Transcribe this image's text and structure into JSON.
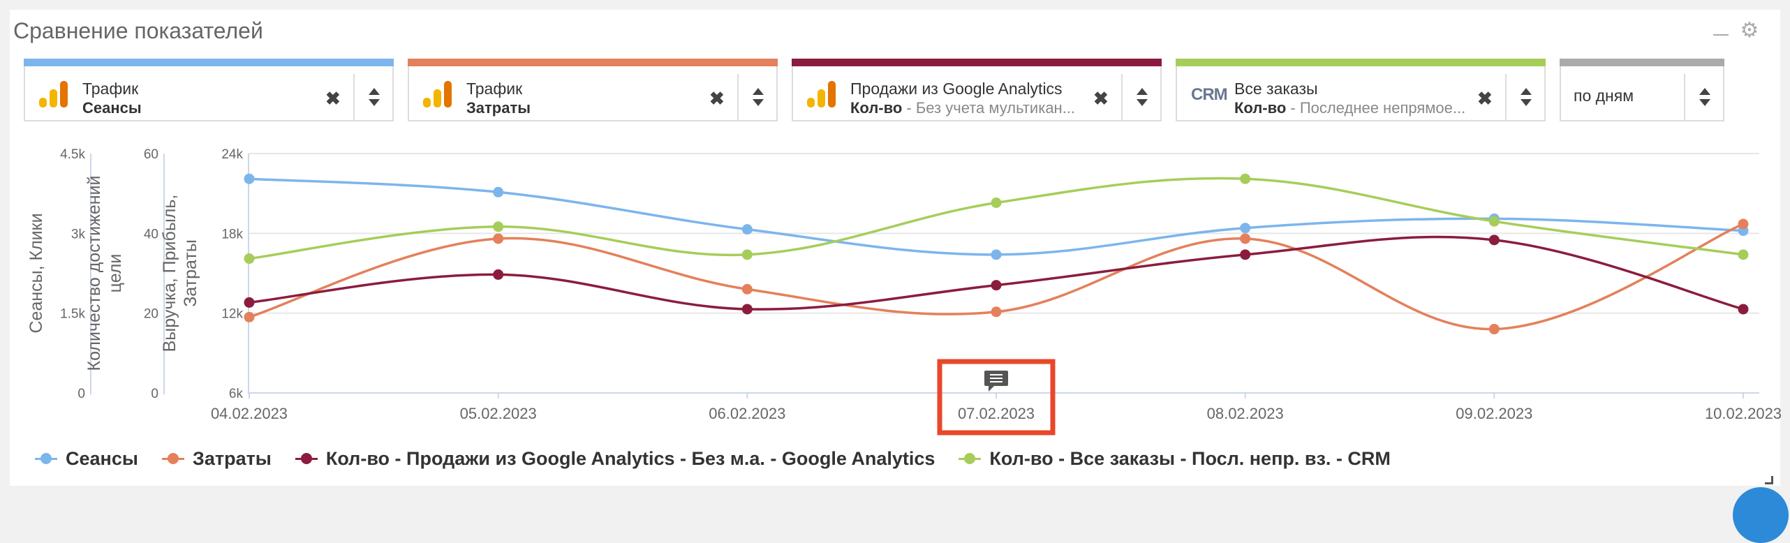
{
  "widget": {
    "title": "Сравнение показателей"
  },
  "selectors": [
    {
      "line1": "Трафик",
      "metric": "Сеансы",
      "detail": "",
      "color": "#7cb5ec",
      "icon": "google-analytics-icon"
    },
    {
      "line1": "Трафик",
      "metric": "Затраты",
      "detail": "",
      "color": "#e4805b",
      "icon": "google-analytics-icon"
    },
    {
      "line1": "Продажи из Google Analytics",
      "metric": "Кол-во",
      "detail": " - Без учета мультикан...",
      "color": "#8c1c3d",
      "icon": "google-analytics-icon"
    },
    {
      "line1": "Все заказы",
      "metric": "Кол-во",
      "detail": " - Последнее непрямое...",
      "color": "#a6cd5a",
      "icon": "crm-icon",
      "icon_text": "CRM"
    }
  ],
  "period": {
    "label": "по дням",
    "color": "#aaaaaa"
  },
  "chart_data": {
    "type": "line",
    "x": [
      "04.02.2023",
      "05.02.2023",
      "06.02.2023",
      "07.02.2023",
      "08.02.2023",
      "09.02.2023",
      "10.02.2023"
    ],
    "axes": [
      {
        "id": "sessions",
        "label": "Сеансы, Клики",
        "ticks": [
          "0",
          "1.5k",
          "3k",
          "4.5k"
        ],
        "range": [
          0,
          4500
        ]
      },
      {
        "id": "goals",
        "label": "Количество достижений цели",
        "label_lines": [
          "Количество достижений",
          "цели"
        ],
        "ticks": [
          "0",
          "20",
          "40",
          "60"
        ],
        "range": [
          0,
          60
        ]
      },
      {
        "id": "revenue",
        "label": "Выручка, Прибыль, Затраты",
        "label_lines": [
          "Выручка, Прибыль,",
          "Затраты"
        ],
        "ticks": [
          "6k",
          "12k",
          "18k",
          "24k"
        ],
        "range": [
          6000,
          24000
        ]
      }
    ],
    "series": [
      {
        "name": "Сеансы",
        "color": "#7cb5ec",
        "values": [
          22100,
          21100,
          18300,
          16400,
          18400,
          19100,
          18200
        ]
      },
      {
        "name": "Затраты",
        "color": "#e4805b",
        "values": [
          11700,
          17600,
          13800,
          12100,
          17600,
          10800,
          18700
        ]
      },
      {
        "name": "Кол-во - Продажи из Google Analytics - Без м.а. - Google Analytics",
        "color": "#8c1c3d",
        "values": [
          12800,
          14900,
          12300,
          14100,
          16400,
          17500,
          12300
        ]
      },
      {
        "name": "Кол-во - Все заказы - Посл. непр. вз. - CRM",
        "color": "#a6cd5a",
        "values": [
          16100,
          18500,
          16400,
          20300,
          22100,
          18900,
          16400
        ]
      }
    ],
    "annotation": {
      "x": "07.02.2023",
      "icon": "comment-icon",
      "highlight_color": "#e8472a"
    },
    "grid": true,
    "legend_position": "bottom-left"
  }
}
